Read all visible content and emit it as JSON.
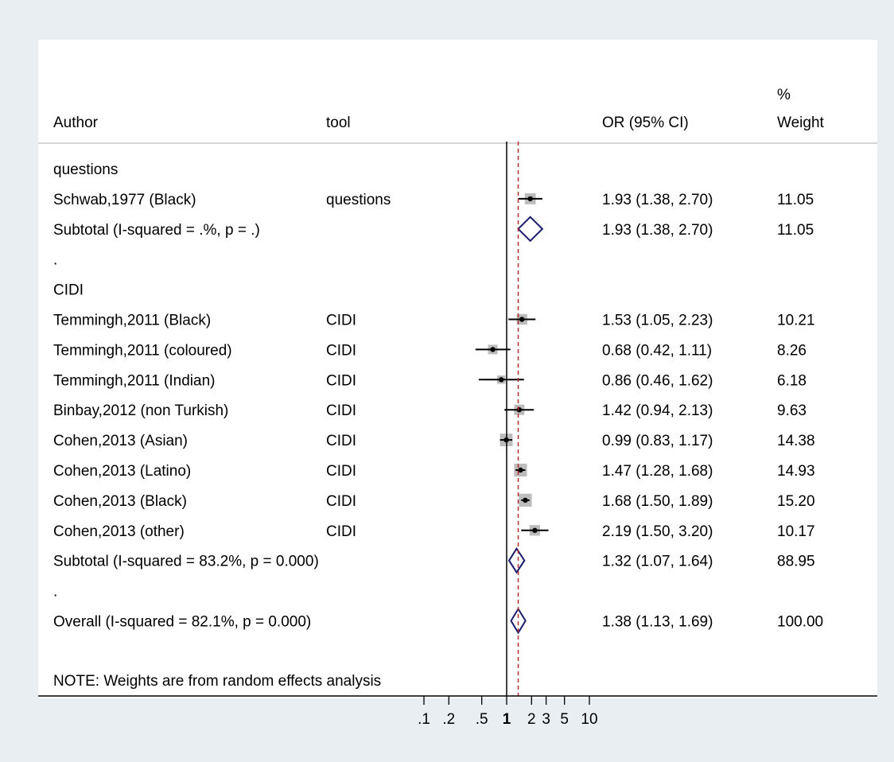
{
  "headers": {
    "author": "Author",
    "tool": "tool",
    "or": "OR (95% CI)",
    "weight_line1": "%",
    "weight_line2": "Weight"
  },
  "chart_data": {
    "type": "forest",
    "x_scale": "log",
    "x_ticks": [
      0.1,
      0.2,
      0.5,
      1,
      2,
      3,
      5,
      10
    ],
    "x_tick_labels": [
      ".1",
      ".2",
      ".5",
      "1",
      "2",
      "3",
      "5",
      "10"
    ],
    "null_line": 1,
    "overall_line": 1.38,
    "rows": [
      {
        "kind": "group",
        "label": "questions"
      },
      {
        "kind": "study",
        "label": "Schwab,1977 (Black)",
        "tool": "questions",
        "or": 1.93,
        "lo": 1.38,
        "hi": 2.7,
        "ci_text": "1.93 (1.38, 2.70)",
        "weight": 11.05,
        "weight_text": "11.05"
      },
      {
        "kind": "subtotal",
        "label": "Subtotal  (I-squared = .%, p = .)",
        "or": 1.93,
        "lo": 1.38,
        "hi": 2.7,
        "ci_text": "1.93 (1.38, 2.70)",
        "weight_text": "11.05"
      },
      {
        "kind": "spacer",
        "label": "."
      },
      {
        "kind": "group",
        "label": "CIDI"
      },
      {
        "kind": "study",
        "label": "Temmingh,2011 (Black)",
        "tool": "CIDI",
        "or": 1.53,
        "lo": 1.05,
        "hi": 2.23,
        "ci_text": "1.53 (1.05, 2.23)",
        "weight": 10.21,
        "weight_text": "10.21"
      },
      {
        "kind": "study",
        "label": "Temmingh,2011 (coloured)",
        "tool": "CIDI",
        "or": 0.68,
        "lo": 0.42,
        "hi": 1.11,
        "ci_text": "0.68 (0.42, 1.11)",
        "weight": 8.26,
        "weight_text": "8.26"
      },
      {
        "kind": "study",
        "label": "Temmingh,2011 (Indian)",
        "tool": "CIDI",
        "or": 0.86,
        "lo": 0.46,
        "hi": 1.62,
        "ci_text": "0.86 (0.46, 1.62)",
        "weight": 6.18,
        "weight_text": "6.18"
      },
      {
        "kind": "study",
        "label": "Binbay,2012 (non Turkish)",
        "tool": "CIDI",
        "or": 1.42,
        "lo": 0.94,
        "hi": 2.13,
        "ci_text": "1.42 (0.94, 2.13)",
        "weight": 9.63,
        "weight_text": "9.63"
      },
      {
        "kind": "study",
        "label": "Cohen,2013 (Asian)",
        "tool": "CIDI",
        "or": 0.99,
        "lo": 0.83,
        "hi": 1.17,
        "ci_text": "0.99 (0.83, 1.17)",
        "weight": 14.38,
        "weight_text": "14.38"
      },
      {
        "kind": "study",
        "label": "Cohen,2013 (Latino)",
        "tool": "CIDI",
        "or": 1.47,
        "lo": 1.28,
        "hi": 1.68,
        "ci_text": "1.47 (1.28, 1.68)",
        "weight": 14.93,
        "weight_text": "14.93"
      },
      {
        "kind": "study",
        "label": "Cohen,2013 (Black)",
        "tool": "CIDI",
        "or": 1.68,
        "lo": 1.5,
        "hi": 1.89,
        "ci_text": "1.68 (1.50, 1.89)",
        "weight": 15.2,
        "weight_text": "15.20"
      },
      {
        "kind": "study",
        "label": "Cohen,2013 (other)",
        "tool": "CIDI",
        "or": 2.19,
        "lo": 1.5,
        "hi": 3.2,
        "ci_text": "2.19 (1.50, 3.20)",
        "weight": 10.17,
        "weight_text": "10.17"
      },
      {
        "kind": "subtotal",
        "label": "Subtotal  (I-squared = 83.2%, p = 0.000)",
        "or": 1.32,
        "lo": 1.07,
        "hi": 1.64,
        "ci_text": "1.32 (1.07, 1.64)",
        "weight_text": "88.95"
      },
      {
        "kind": "spacer",
        "label": "."
      },
      {
        "kind": "overall",
        "label": "Overall  (I-squared = 82.1%, p = 0.000)",
        "or": 1.38,
        "lo": 1.13,
        "hi": 1.69,
        "ci_text": "1.38 (1.13, 1.69)",
        "weight_text": "100.00"
      }
    ],
    "note": "NOTE: Weights are from random effects analysis"
  },
  "colors": {
    "background": "#e8eef2",
    "panel": "#ffffff",
    "diamond": "#1a1a6e",
    "overall_line": "#b03030",
    "weight_box": "#bcbcbc"
  }
}
